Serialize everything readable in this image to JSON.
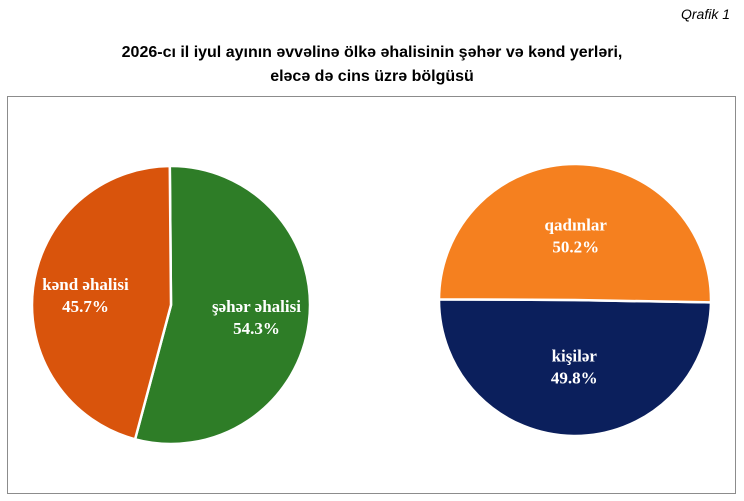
{
  "figure_label": "Qrafik 1",
  "title_line1": "2026-cı il iyul ayının əvvəlinə ölkə əhalisinin şəhər və kənd yerləri,",
  "title_line2": "eləcə də cins üzrə bölgüsü",
  "chart_data": [
    {
      "type": "pie",
      "title": "",
      "slices": [
        {
          "label": "şəhər əhalisi",
          "value": 54.3,
          "display": "54.3%",
          "color": "#2e7d27"
        },
        {
          "label": "kənd əhalisi",
          "value": 45.7,
          "display": "45.7%",
          "color": "#d9540c"
        }
      ]
    },
    {
      "type": "pie",
      "title": "",
      "slices": [
        {
          "label": "kişilər",
          "value": 49.8,
          "display": "49.8%",
          "color": "#0b1f5c"
        },
        {
          "label": "qadınlar",
          "value": 50.2,
          "display": "50.2%",
          "color": "#f5801f"
        }
      ]
    }
  ]
}
